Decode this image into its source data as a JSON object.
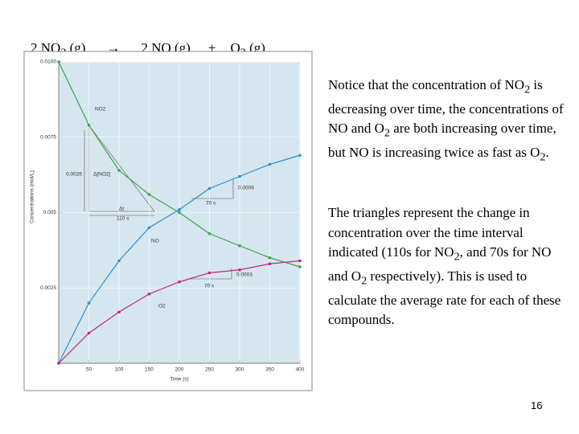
{
  "slide": {
    "equation": [
      "2 NO",
      "2",
      " (g)",
      "→",
      "2 NO (g)",
      "+",
      "O",
      "2",
      " (g)"
    ],
    "paragraph1": [
      "Notice that the concentration of NO",
      "2",
      " is decreasing over time, the concentrations of NO and O",
      "2",
      " are both increasing over time, but NO is increasing twice as fast as O",
      "2",
      "."
    ],
    "paragraph2": [
      "The triangles represent the change in concentration over the time interval indicated (110s for NO",
      "2",
      ", and 70s for NO and O",
      "2",
      " respectively).  This is used to calculate the average rate for each of these compounds."
    ],
    "page_number": "16"
  },
  "chart_data": {
    "type": "line",
    "x_label": "Time (s)",
    "y_label": "Concentrations (mol/L)",
    "x": [
      0,
      50,
      100,
      150,
      200,
      250,
      300,
      350,
      400
    ],
    "series": [
      {
        "name": "NO2",
        "color": "#3aa64a",
        "values": [
          0.01,
          0.0079,
          0.0064,
          0.0056,
          0.005,
          0.0043,
          0.0039,
          0.0035,
          0.0032
        ]
      },
      {
        "name": "NO",
        "color": "#2a8fd0",
        "values": [
          0,
          0.002,
          0.0034,
          0.0045,
          0.0051,
          0.0058,
          0.0062,
          0.0066,
          0.0069
        ]
      },
      {
        "name": "O2",
        "color": "#c0267a",
        "values": [
          0,
          0.001,
          0.0017,
          0.0023,
          0.0027,
          0.003,
          0.0031,
          0.0033,
          0.0034
        ]
      }
    ],
    "xlim": [
      0,
      400
    ],
    "xticks": [
      50,
      100,
      150,
      200,
      250,
      300,
      350,
      400
    ],
    "ylim": [
      0,
      0.01
    ],
    "yticks": [
      0.0025,
      0.005,
      0.0075,
      {
        "value": 0.01,
        "label": "0.0100"
      }
    ],
    "grid": true,
    "annotations": [
      "0.0026",
      "Δ[NO2]",
      "Δt",
      "110 s",
      "70 s",
      "0.0006",
      "70 s",
      "0.0003"
    ]
  }
}
